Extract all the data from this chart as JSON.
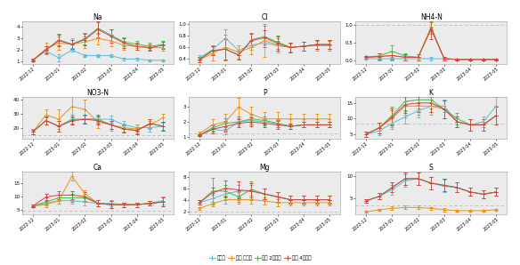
{
  "x_labels": [
    "2022-12",
    "2023-01",
    "2023-02",
    "2023-03",
    "2023-04",
    "2023-05"
  ],
  "colors": {
    "비순환": "#5bbcd4",
    "순환 무보정": "#e8941a",
    "순환 2주보정": "#4db84d",
    "순환 4주보정": "#d94040"
  },
  "subplots": [
    {
      "title": "Na",
      "ylim": [
        0.8,
        4.5
      ],
      "yticks": [
        1,
        2,
        3,
        4
      ],
      "hline": null,
      "series": {
        "비순환": {
          "y": [
            1.1,
            1.9,
            1.3,
            2.0,
            1.5,
            1.5,
            1.5,
            1.2,
            1.2,
            1.1,
            1.1
          ],
          "err": [
            0.05,
            0.1,
            0.3,
            0.15,
            0.15,
            0.1,
            0.1,
            0.1,
            0.1,
            0.08,
            0.08
          ]
        },
        "순환 무보정": {
          "y": [
            1.1,
            2.1,
            2.6,
            2.5,
            2.7,
            3.0,
            2.8,
            2.4,
            2.3,
            2.2,
            2.2
          ],
          "err": [
            0.1,
            0.5,
            0.6,
            0.5,
            0.5,
            0.5,
            0.5,
            0.4,
            0.3,
            0.3,
            0.3
          ]
        },
        "순환 2주보정": {
          "y": [
            1.1,
            2.0,
            2.9,
            2.5,
            3.0,
            3.9,
            3.3,
            2.7,
            2.5,
            2.3,
            2.5
          ],
          "err": [
            0.1,
            0.3,
            0.5,
            0.4,
            0.5,
            0.5,
            0.5,
            0.4,
            0.3,
            0.3,
            0.3
          ]
        },
        "순환 4주보정": {
          "y": [
            1.1,
            2.0,
            2.8,
            2.5,
            2.9,
            3.8,
            3.2,
            2.6,
            2.3,
            2.2,
            2.4
          ],
          "err": [
            0.1,
            0.3,
            0.5,
            0.4,
            0.5,
            0.7,
            0.6,
            0.4,
            0.3,
            0.3,
            0.3
          ]
        }
      }
    },
    {
      "title": "Cl",
      "ylim": [
        0.32,
        1.05
      ],
      "yticks": [
        0.4,
        0.6,
        0.8,
        1.0
      ],
      "hline": null,
      "series": {
        "비순환": {
          "y": [
            0.42,
            0.56,
            0.76,
            0.55,
            0.64,
            0.68,
            0.63,
            0.6,
            0.62,
            0.65,
            0.65
          ],
          "err": [
            0.04,
            0.08,
            0.15,
            0.08,
            0.08,
            0.08,
            0.08,
            0.07,
            0.07,
            0.07,
            0.07
          ]
        },
        "순환 무보정": {
          "y": [
            0.38,
            0.5,
            0.6,
            0.52,
            0.6,
            0.72,
            0.64,
            0.6,
            0.62,
            0.63,
            0.63
          ],
          "err": [
            0.04,
            0.12,
            0.22,
            0.12,
            0.12,
            0.28,
            0.12,
            0.08,
            0.08,
            0.08,
            0.08
          ]
        },
        "순환 2주보정": {
          "y": [
            0.39,
            0.55,
            0.57,
            0.47,
            0.73,
            0.79,
            0.69,
            0.6,
            0.62,
            0.65,
            0.65
          ],
          "err": [
            0.04,
            0.08,
            0.18,
            0.08,
            0.12,
            0.18,
            0.12,
            0.08,
            0.08,
            0.08,
            0.08
          ]
        },
        "순환 4주보정": {
          "y": [
            0.39,
            0.54,
            0.57,
            0.47,
            0.72,
            0.77,
            0.67,
            0.6,
            0.62,
            0.65,
            0.65
          ],
          "err": [
            0.04,
            0.08,
            0.18,
            0.08,
            0.12,
            0.12,
            0.12,
            0.08,
            0.08,
            0.08,
            0.08
          ]
        }
      }
    },
    {
      "title": "NH4-N",
      "ylim": [
        -0.1,
        1.1
      ],
      "yticks": [
        0.0,
        0.5,
        1.0
      ],
      "hline": 1.0,
      "series": {
        "비순환": {
          "y": [
            0.04,
            0.04,
            0.04,
            0.04,
            0.04,
            0.04,
            0.04,
            0.02,
            0.02,
            0.02,
            0.02
          ],
          "err": [
            0.02,
            0.04,
            0.04,
            0.04,
            0.04,
            0.04,
            0.04,
            0.02,
            0.02,
            0.02,
            0.02
          ]
        },
        "순환 무보정": {
          "y": [
            0.08,
            0.1,
            0.13,
            0.08,
            0.08,
            0.95,
            0.04,
            0.02,
            0.02,
            0.02,
            0.02
          ],
          "err": [
            0.04,
            0.08,
            0.12,
            0.08,
            0.08,
            0.12,
            0.04,
            0.02,
            0.02,
            0.02,
            0.02
          ]
        },
        "순환 2주보정": {
          "y": [
            0.08,
            0.12,
            0.25,
            0.12,
            0.08,
            0.92,
            0.04,
            0.02,
            0.02,
            0.02,
            0.02
          ],
          "err": [
            0.04,
            0.08,
            0.18,
            0.08,
            0.08,
            0.18,
            0.04,
            0.02,
            0.02,
            0.02,
            0.02
          ]
        },
        "순환 4주보정": {
          "y": [
            0.08,
            0.1,
            0.13,
            0.08,
            0.08,
            0.88,
            0.04,
            0.02,
            0.02,
            0.02,
            0.02
          ],
          "err": [
            0.04,
            0.08,
            0.12,
            0.08,
            0.08,
            0.28,
            0.04,
            0.02,
            0.02,
            0.02,
            0.02
          ]
        }
      }
    },
    {
      "title": "NO3-N",
      "ylim": [
        12,
        42
      ],
      "yticks": [
        20,
        30,
        40
      ],
      "hline": 14.5,
      "series": {
        "비순환": {
          "y": [
            17,
            25,
            21,
            25,
            26,
            26,
            26,
            22,
            20,
            20,
            21
          ],
          "err": [
            1.5,
            2.5,
            3.5,
            2.5,
            2.5,
            2.5,
            2.5,
            2.5,
            2.5,
            2.5,
            2.5
          ]
        },
        "순환 무보정": {
          "y": [
            17,
            29,
            26,
            35,
            33,
            24,
            22,
            20,
            19,
            22,
            27
          ],
          "err": [
            2,
            4,
            7,
            9,
            7,
            4,
            4,
            3,
            3,
            3,
            3
          ]
        },
        "순환 2주보정": {
          "y": [
            17,
            25,
            21,
            26,
            26,
            26,
            22,
            19,
            18,
            23,
            21
          ],
          "err": [
            1.5,
            3,
            4,
            3,
            3,
            3,
            3,
            2.5,
            2.5,
            3,
            3
          ]
        },
        "순환 4주보정": {
          "y": [
            17,
            25,
            21,
            25,
            26,
            25,
            22,
            19,
            18,
            23,
            21
          ],
          "err": [
            1.5,
            3,
            4,
            3,
            3,
            3,
            3,
            2.5,
            2.5,
            3,
            3
          ]
        }
      }
    },
    {
      "title": "P",
      "ylim": [
        0.85,
        3.7
      ],
      "yticks": [
        1,
        2,
        3
      ],
      "hline": 1.2,
      "series": {
        "비순환": {
          "y": [
            1.1,
            1.5,
            1.4,
            2.0,
            2.1,
            2.0,
            1.9,
            1.7,
            1.8,
            1.8,
            1.8
          ],
          "err": [
            0.08,
            0.15,
            0.25,
            0.25,
            0.25,
            0.25,
            0.25,
            0.18,
            0.18,
            0.18,
            0.18
          ]
        },
        "순환 무보정": {
          "y": [
            1.2,
            1.8,
            2.0,
            3.0,
            2.5,
            2.2,
            2.2,
            2.2,
            2.2,
            2.2,
            2.2
          ],
          "err": [
            0.15,
            0.4,
            0.55,
            0.65,
            0.55,
            0.45,
            0.45,
            0.35,
            0.35,
            0.35,
            0.35
          ]
        },
        "순환 2주보정": {
          "y": [
            1.1,
            1.6,
            1.9,
            2.0,
            2.2,
            2.1,
            1.9,
            1.7,
            1.8,
            1.8,
            1.8
          ],
          "err": [
            0.08,
            0.25,
            0.35,
            0.35,
            0.35,
            0.25,
            0.25,
            0.18,
            0.18,
            0.18,
            0.18
          ]
        },
        "순환 4주보정": {
          "y": [
            1.1,
            1.5,
            1.7,
            1.9,
            2.0,
            1.9,
            1.8,
            1.7,
            1.8,
            1.8,
            1.8
          ],
          "err": [
            0.08,
            0.25,
            0.35,
            0.28,
            0.28,
            0.25,
            0.25,
            0.18,
            0.18,
            0.18,
            0.18
          ]
        }
      }
    },
    {
      "title": "K",
      "ylim": [
        3.5,
        17
      ],
      "yticks": [
        5,
        10,
        15
      ],
      "hline": 8.5,
      "series": {
        "비순환": {
          "y": [
            5.0,
            6.0,
            8.5,
            10.5,
            12.5,
            14.0,
            14.0,
            9.0,
            8.0,
            9.0,
            14.0
          ],
          "err": [
            0.8,
            1.2,
            1.8,
            2.0,
            2.0,
            2.0,
            2.0,
            1.8,
            1.8,
            1.8,
            3.0
          ]
        },
        "순환 무보정": {
          "y": [
            5.0,
            7.0,
            10.0,
            14.0,
            14.0,
            14.0,
            13.0,
            9.0,
            8.0,
            8.0,
            11.0
          ],
          "err": [
            0.8,
            1.8,
            2.8,
            2.8,
            2.8,
            2.8,
            2.8,
            1.8,
            1.8,
            1.8,
            2.8
          ]
        },
        "순환 2주보정": {
          "y": [
            5.0,
            7.0,
            11.0,
            15.5,
            16.0,
            16.0,
            13.0,
            10.0,
            8.0,
            8.0,
            11.0
          ],
          "err": [
            0.8,
            1.8,
            2.8,
            2.8,
            2.8,
            2.8,
            2.8,
            1.8,
            1.8,
            1.8,
            2.8
          ]
        },
        "순환 4주보정": {
          "y": [
            5.0,
            7.0,
            10.5,
            14.5,
            15.0,
            15.0,
            13.0,
            9.0,
            8.0,
            8.0,
            11.0
          ],
          "err": [
            0.8,
            1.8,
            2.8,
            2.8,
            2.8,
            2.8,
            2.8,
            1.8,
            1.8,
            1.8,
            2.8
          ]
        }
      }
    },
    {
      "title": "Ca",
      "ylim": [
        3.5,
        19
      ],
      "yticks": [
        5,
        10,
        15
      ],
      "hline": 4.8,
      "series": {
        "비순환": {
          "y": [
            6.5,
            7.5,
            8.5,
            8.5,
            8.0,
            7.5,
            7.5,
            7.0,
            7.0,
            7.5,
            8.5
          ],
          "err": [
            0.4,
            0.8,
            1.2,
            1.2,
            1.2,
            1.2,
            1.2,
            0.8,
            0.8,
            0.8,
            1.5
          ]
        },
        "순환 무보정": {
          "y": [
            6.5,
            7.0,
            8.5,
            17.5,
            11.0,
            7.5,
            7.0,
            7.0,
            7.0,
            7.5,
            8.0
          ],
          "err": [
            0.4,
            0.8,
            1.2,
            1.5,
            1.2,
            1.2,
            1.2,
            0.8,
            0.8,
            0.8,
            1.5
          ]
        },
        "순환 2주보정": {
          "y": [
            6.5,
            8.0,
            9.5,
            9.5,
            9.5,
            7.5,
            7.0,
            7.0,
            7.0,
            7.5,
            8.0
          ],
          "err": [
            0.4,
            0.8,
            1.2,
            1.5,
            1.5,
            1.2,
            1.2,
            0.8,
            0.8,
            0.8,
            1.5
          ]
        },
        "순환 4주보정": {
          "y": [
            6.5,
            9.8,
            10.5,
            10.5,
            10.0,
            7.5,
            7.0,
            7.0,
            7.0,
            7.5,
            8.0
          ],
          "err": [
            0.4,
            1.2,
            1.5,
            1.5,
            1.5,
            1.2,
            1.2,
            0.8,
            0.8,
            0.8,
            1.5
          ]
        }
      }
    },
    {
      "title": "Mg",
      "ylim": [
        1.5,
        8.8
      ],
      "yticks": [
        2,
        4,
        6,
        8
      ],
      "hline": 2.0,
      "series": {
        "비순환": {
          "y": [
            3.5,
            4.2,
            5.0,
            5.5,
            5.5,
            5.0,
            4.5,
            4.0,
            4.0,
            4.0,
            4.0
          ],
          "err": [
            0.4,
            0.6,
            0.9,
            1.1,
            1.1,
            0.9,
            0.9,
            0.7,
            0.7,
            0.7,
            0.7
          ]
        },
        "순환 무보정": {
          "y": [
            2.5,
            3.3,
            4.0,
            4.0,
            4.0,
            3.8,
            3.5,
            3.5,
            3.5,
            3.5,
            3.5
          ],
          "err": [
            0.25,
            0.4,
            0.7,
            0.7,
            0.7,
            0.6,
            0.6,
            0.5,
            0.5,
            0.5,
            0.5
          ]
        },
        "순환 2주보정": {
          "y": [
            3.5,
            5.5,
            5.5,
            4.5,
            5.8,
            5.0,
            4.5,
            4.0,
            4.0,
            4.0,
            4.0
          ],
          "err": [
            0.4,
            2.3,
            1.1,
            0.9,
            1.4,
            0.9,
            0.9,
            0.7,
            0.7,
            0.7,
            0.7
          ]
        },
        "순환 4주보정": {
          "y": [
            3.5,
            5.2,
            6.0,
            5.7,
            5.5,
            5.0,
            4.5,
            4.0,
            4.0,
            4.0,
            4.0
          ],
          "err": [
            0.4,
            0.9,
            1.4,
            1.4,
            1.4,
            0.9,
            0.9,
            0.7,
            0.7,
            0.7,
            0.7
          ]
        }
      }
    },
    {
      "title": "S",
      "ylim": [
        1.5,
        11
      ],
      "yticks": [
        5,
        10
      ],
      "hline": 3.5,
      "series": {
        "비순환": {
          "y": [
            4.5,
            5.5,
            7.0,
            9.0,
            9.5,
            8.5,
            7.8,
            7.5,
            6.5,
            6.0,
            6.5
          ],
          "err": [
            0.4,
            0.7,
            1.1,
            1.4,
            1.4,
            1.4,
            1.4,
            1.1,
            0.9,
            0.9,
            0.9
          ]
        },
        "순환 무보정": {
          "y": [
            2.0,
            2.5,
            2.8,
            3.0,
            3.0,
            2.8,
            2.5,
            2.3,
            2.3,
            2.3,
            2.5
          ],
          "err": [
            0.18,
            0.25,
            0.4,
            0.4,
            0.4,
            0.35,
            0.35,
            0.25,
            0.25,
            0.25,
            0.25
          ]
        },
        "순환 2주보정": {
          "y": [
            4.5,
            5.5,
            7.5,
            9.5,
            9.5,
            8.5,
            8.0,
            7.5,
            6.5,
            6.0,
            6.5
          ],
          "err": [
            0.4,
            0.7,
            1.1,
            1.4,
            1.4,
            1.4,
            1.4,
            1.1,
            0.9,
            0.9,
            0.9
          ]
        },
        "순환 4주보정": {
          "y": [
            4.5,
            5.5,
            7.5,
            9.5,
            9.5,
            8.5,
            8.0,
            7.5,
            6.5,
            6.0,
            6.5
          ],
          "err": [
            0.4,
            0.7,
            1.1,
            1.4,
            1.4,
            1.4,
            1.4,
            1.1,
            0.9,
            0.9,
            0.9
          ]
        }
      }
    }
  ],
  "x_positions": [
    0,
    0.5,
    1,
    1.5,
    2,
    2.5,
    3,
    3.5,
    4,
    4.5,
    5
  ],
  "x_tick_positions": [
    0,
    1,
    2,
    3,
    4,
    5
  ],
  "legend_labels": [
    "비순환",
    "순환 무보정",
    "순환 2주보정",
    "순환 4주보정"
  ],
  "bg_color": "#ebebeb",
  "hline_color": "#bbbbbb"
}
